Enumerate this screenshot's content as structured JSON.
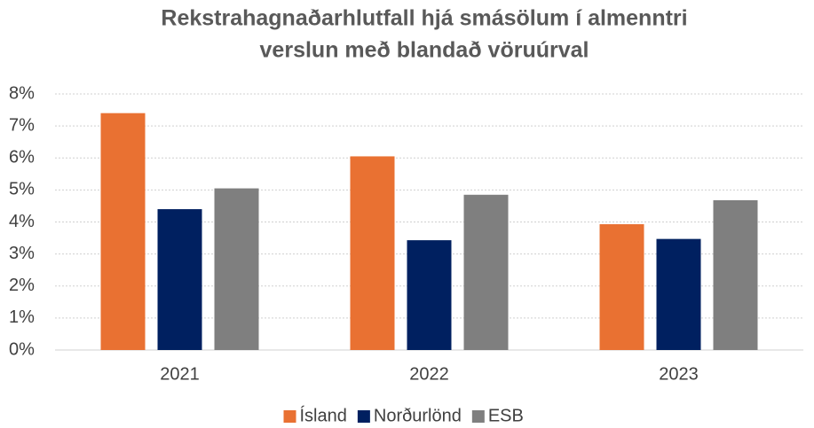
{
  "chart_data": {
    "type": "bar",
    "title": [
      "Rekstrahagnaðarhlutfall hjá smásölum í almenntri",
      "verslun með blandað vöruúrval"
    ],
    "categories": [
      "2021",
      "2022",
      "2023"
    ],
    "series": [
      {
        "name": "Ísland",
        "color": "#E97132",
        "values": [
          7.4,
          6.05,
          3.93
        ]
      },
      {
        "name": "Norðurlönd",
        "color": "#002060",
        "values": [
          4.4,
          3.43,
          3.47
        ]
      },
      {
        "name": "ESB",
        "color": "#7F7F7F",
        "values": [
          5.05,
          4.85,
          4.68
        ]
      }
    ],
    "ylim": [
      0,
      8
    ],
    "yticks": [
      {
        "value": 0,
        "label": "0%"
      },
      {
        "value": 1,
        "label": "1%"
      },
      {
        "value": 2,
        "label": "2%"
      },
      {
        "value": 3,
        "label": "3%"
      },
      {
        "value": 4,
        "label": "4%"
      },
      {
        "value": 5,
        "label": "5%"
      },
      {
        "value": 6,
        "label": "6%"
      },
      {
        "value": 7,
        "label": "7%"
      },
      {
        "value": 8,
        "label": "8%"
      }
    ],
    "grid": true,
    "legend": "bottom"
  }
}
